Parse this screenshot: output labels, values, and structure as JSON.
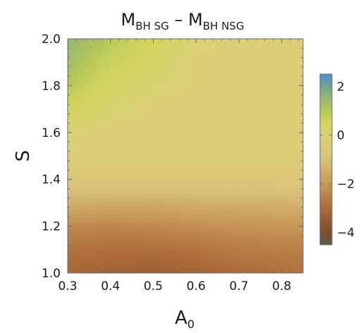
{
  "chart_data": {
    "type": "heatmap",
    "title": {
      "parts": [
        {
          "text": "M",
          "sub": "BH SG"
        },
        {
          "text": " – "
        },
        {
          "text": "M",
          "sub": "BH NSG"
        }
      ]
    },
    "xlabel": {
      "text": "A",
      "sub": "0"
    },
    "ylabel": "S",
    "xlim": [
      0.3,
      0.85
    ],
    "ylim": [
      1.0,
      2.0
    ],
    "x_ticks": [
      0.3,
      0.4,
      0.5,
      0.6,
      0.7,
      0.8
    ],
    "x_tick_labels": [
      "0.3",
      "0.4",
      "0.5",
      "0.6",
      "0.7",
      "0.8"
    ],
    "y_ticks": [
      1.0,
      1.2,
      1.4,
      1.6,
      1.8,
      2.0
    ],
    "y_tick_labels": [
      "1.0",
      "1.2",
      "1.4",
      "1.6",
      "1.8",
      "2.0"
    ],
    "colorbar": {
      "range": [
        -4.5,
        2.5
      ],
      "ticks": [
        2,
        0,
        -2,
        -4
      ],
      "tick_labels": [
        "2",
        "0",
        "−2",
        "−4"
      ],
      "stops": [
        {
          "value": -4.5,
          "color": "#5e5a4e"
        },
        {
          "value": -4.0,
          "color": "#7c4e2c"
        },
        {
          "value": -3.0,
          "color": "#ad6a3a"
        },
        {
          "value": -2.0,
          "color": "#c69858"
        },
        {
          "value": -1.0,
          "color": "#d9c07a"
        },
        {
          "value": 0.0,
          "color": "#dcd075"
        },
        {
          "value": 0.5,
          "color": "#d4d45c"
        },
        {
          "value": 1.0,
          "color": "#b8c858"
        },
        {
          "value": 2.0,
          "color": "#6fa590"
        },
        {
          "value": 2.5,
          "color": "#4d8ed2"
        }
      ]
    },
    "x": [
      0.3,
      0.4,
      0.5,
      0.6,
      0.7,
      0.85
    ],
    "y": [
      1.0,
      1.1,
      1.2,
      1.3,
      1.4,
      1.5,
      1.6,
      1.7,
      1.8,
      1.9,
      2.0
    ],
    "z": [
      [
        -3.1,
        -3.3,
        -3.4,
        -3.2,
        -3.0,
        -2.8
      ],
      [
        -2.8,
        -2.9,
        -2.9,
        -2.8,
        -2.6,
        -2.5
      ],
      [
        -2.3,
        -2.4,
        -2.3,
        -2.2,
        -2.1,
        -2.0
      ],
      [
        -1.4,
        -1.5,
        -1.5,
        -1.4,
        -1.4,
        -1.3
      ],
      [
        -0.6,
        -0.6,
        -0.6,
        -0.6,
        -0.6,
        -0.6
      ],
      [
        -0.2,
        -0.3,
        -0.3,
        -0.3,
        -0.3,
        -0.3
      ],
      [
        0.1,
        -0.2,
        -0.2,
        -0.2,
        -0.2,
        -0.2
      ],
      [
        0.6,
        0.1,
        -0.1,
        -0.2,
        -0.2,
        -0.2
      ],
      [
        1.0,
        0.4,
        0.1,
        -0.1,
        -0.2,
        -0.2
      ],
      [
        1.3,
        0.7,
        0.3,
        -0.1,
        -0.2,
        -0.2
      ],
      [
        1.5,
        1.0,
        0.5,
        0.0,
        -0.1,
        -0.2
      ]
    ],
    "grid": false,
    "colorbar_position": "right"
  }
}
